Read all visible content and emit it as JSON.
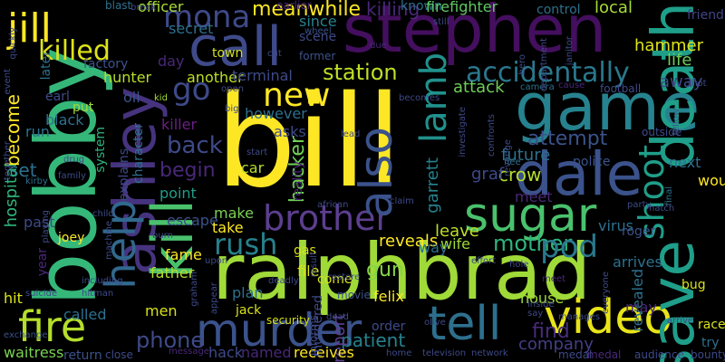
{
  "words": [
    {
      "text": "bill",
      "color": "#fde725"
    },
    {
      "text": "stephen",
      "color": "#440f5e"
    },
    {
      "text": "ralphbrad",
      "color": "#a0da39"
    },
    {
      "text": "bobby",
      "color": "#35b779"
    },
    {
      "text": "game",
      "color": "#26828e"
    },
    {
      "text": "dale",
      "color": "#3b528b"
    },
    {
      "text": "call",
      "color": "#3e4a89"
    },
    {
      "text": "ashley",
      "color": "#46337e"
    },
    {
      "text": "sugar",
      "color": "#4ac16d"
    },
    {
      "text": "murder",
      "color": "#3b528b"
    },
    {
      "text": "video",
      "color": "#e8e419"
    },
    {
      "text": "fire",
      "color": "#b5de2b"
    },
    {
      "text": "kill",
      "color": "#4ac16d"
    },
    {
      "text": "tell",
      "color": "#2d708e"
    },
    {
      "text": "brother",
      "color": "#5c3f8f"
    },
    {
      "text": "shoot",
      "color": "#1f9e89"
    },
    {
      "text": "death",
      "color": "#1f9e89"
    },
    {
      "text": "also",
      "color": "#3b528b"
    },
    {
      "text": "lamb",
      "color": "#21918c"
    },
    {
      "text": "new",
      "color": "#fde725"
    },
    {
      "text": "go",
      "color": "#3e4a89"
    },
    {
      "text": "mona",
      "color": "#3e4a89"
    },
    {
      "text": "rush",
      "color": "#26828e"
    },
    {
      "text": "help",
      "color": "#31688e"
    },
    {
      "text": "jill",
      "color": "#fde725"
    },
    {
      "text": "killed",
      "color": "#dde318"
    },
    {
      "text": "accidentally",
      "color": "#2a788e"
    },
    {
      "text": "station",
      "color": "#bddf26"
    },
    {
      "text": "attack",
      "color": "#6ece58"
    },
    {
      "text": "back",
      "color": "#3e4a89"
    },
    {
      "text": "attempt",
      "color": "#3b528b"
    },
    {
      "text": "future",
      "color": "#2d708e"
    },
    {
      "text": "crow",
      "color": "#b5de2b"
    },
    {
      "text": "begin",
      "color": "#482878"
    },
    {
      "text": "gun",
      "color": "#86d549"
    },
    {
      "text": "mother",
      "color": "#2fb47c"
    },
    {
      "text": "leave",
      "color": "#bddf26"
    },
    {
      "text": "pod",
      "color": "#2a788e"
    },
    {
      "text": "save",
      "color": "#1f9e89"
    },
    {
      "text": "find",
      "color": "#472d7b"
    },
    {
      "text": "phone",
      "color": "#3e4a89"
    },
    {
      "text": "patient",
      "color": "#26828e"
    },
    {
      "text": "company",
      "color": "#433e85"
    },
    {
      "text": "hacker",
      "color": "#73d056"
    },
    {
      "text": "graf",
      "color": "#3e4a89"
    },
    {
      "text": "garrett",
      "color": "#26828e"
    },
    {
      "text": "reveals",
      "color": "#fde725"
    },
    {
      "text": "set",
      "color": "#2d708e"
    },
    {
      "text": "meanwhile",
      "color": "#fde725"
    },
    {
      "text": "killing",
      "color": "#482878"
    },
    {
      "text": "known",
      "color": "#2d708e"
    },
    {
      "text": "firefighter",
      "color": "#5ec962"
    },
    {
      "text": "control",
      "color": "#2d708e"
    },
    {
      "text": "local",
      "color": "#a5db36"
    },
    {
      "text": "friend",
      "color": "#414487"
    },
    {
      "text": "hammer",
      "color": "#dde318"
    },
    {
      "text": "life",
      "color": "#6ece58"
    },
    {
      "text": "away",
      "color": "#3e4a89"
    },
    {
      "text": "since",
      "color": "#26828e"
    },
    {
      "text": "scene",
      "color": "#3e4a89"
    },
    {
      "text": "town",
      "color": "#d0e11c"
    },
    {
      "text": "secret",
      "color": "#2d708e"
    },
    {
      "text": "officer",
      "color": "#a8db34"
    },
    {
      "text": "factory",
      "color": "#3b528b"
    },
    {
      "text": "hunter",
      "color": "#b5de2b"
    },
    {
      "text": "oil",
      "color": "#3b528b"
    },
    {
      "text": "day",
      "color": "#482878"
    },
    {
      "text": "another",
      "color": "#bddf26"
    },
    {
      "text": "terminal",
      "color": "#3e4a89"
    },
    {
      "text": "however",
      "color": "#2d708e"
    },
    {
      "text": "killer",
      "color": "#6b1f84"
    },
    {
      "text": "point",
      "color": "#1f9e89"
    },
    {
      "text": "escape",
      "color": "#3b528b"
    },
    {
      "text": "make",
      "color": "#7ad151"
    },
    {
      "text": "take",
      "color": "#fde725"
    },
    {
      "text": "fame",
      "color": "#fde725"
    },
    {
      "text": "father",
      "color": "#b5de2b"
    },
    {
      "text": "file",
      "color": "#d8e219"
    },
    {
      "text": "felix",
      "color": "#fde725"
    },
    {
      "text": "report",
      "color": "#5c3f8f"
    },
    {
      "text": "way",
      "color": "#2d708e"
    },
    {
      "text": "wife",
      "color": "#a0da39"
    },
    {
      "text": "police",
      "color": "#3b528b"
    },
    {
      "text": "meet",
      "color": "#482878"
    },
    {
      "text": "next",
      "color": "#2d708e"
    },
    {
      "text": "would",
      "color": "#fde725"
    },
    {
      "text": "virus",
      "color": "#2d708e"
    },
    {
      "text": "roger",
      "color": "#3b528b"
    },
    {
      "text": "arrives",
      "color": "#2d708e"
    },
    {
      "text": "revealed",
      "color": "#2d708e"
    },
    {
      "text": "bug",
      "color": "#d8e219"
    },
    {
      "text": "may",
      "color": "#482878"
    },
    {
      "text": "race",
      "color": "#d8e219"
    },
    {
      "text": "try",
      "color": "#2d708e"
    },
    {
      "text": "plan",
      "color": "#2d708e"
    },
    {
      "text": "jack",
      "color": "#d8e219"
    },
    {
      "text": "men",
      "color": "#d8e219"
    },
    {
      "text": "hack",
      "color": "#3e4a89"
    },
    {
      "text": "named",
      "color": "#482878"
    },
    {
      "text": "receives",
      "color": "#fde725"
    },
    {
      "text": "house",
      "color": "#a0da39"
    },
    {
      "text": "order",
      "color": "#3e4a89"
    },
    {
      "text": "called",
      "color": "#2d708e"
    },
    {
      "text": "return",
      "color": "#3b528b"
    },
    {
      "text": "waitress",
      "color": "#7ad151"
    },
    {
      "text": "hit",
      "color": "#dde318"
    },
    {
      "text": "hospital",
      "color": "#2fb47c"
    },
    {
      "text": "become",
      "color": "#fde725"
    },
    {
      "text": "earl",
      "color": "#3e4a89"
    },
    {
      "text": "black",
      "color": "#2d708e"
    },
    {
      "text": "run",
      "color": "#2d708e"
    },
    {
      "text": "later",
      "color": "#2d708e"
    },
    {
      "text": "put",
      "color": "#a0da39"
    },
    {
      "text": "system",
      "color": "#2fb47c"
    },
    {
      "text": "explains",
      "color": "#3e4a89"
    },
    {
      "text": "character",
      "color": "#2d708e"
    },
    {
      "text": "past",
      "color": "#3e4a89"
    },
    {
      "text": "year",
      "color": "#482878"
    },
    {
      "text": "joey",
      "color": "#fde725"
    },
    {
      "text": "kirby",
      "color": "#2d708e"
    },
    {
      "text": "car",
      "color": "#b5de2b"
    },
    {
      "text": "come",
      "color": "#d8e219"
    },
    {
      "text": "murdered",
      "color": "#3e4a89"
    },
    {
      "text": "informs",
      "color": "#3e4a89"
    },
    {
      "text": "security",
      "color": "#d8e219"
    },
    {
      "text": "movie",
      "color": "#3b528b"
    },
    {
      "text": "gas",
      "color": "#d8e219"
    },
    {
      "text": "asks",
      "color": "#3e4a89"
    },
    {
      "text": "reality",
      "color": "#482878"
    },
    {
      "text": "result",
      "color": "#3e4a89"
    },
    {
      "text": "blast",
      "color": "#2d708e"
    },
    {
      "text": "cut",
      "color": "#3e4a89"
    },
    {
      "text": "earlier",
      "color": "#482878"
    },
    {
      "text": "wheel",
      "color": "#3b528b"
    },
    {
      "text": "former",
      "color": "#3b528b"
    },
    {
      "text": "due",
      "color": "#482878"
    },
    {
      "text": "medal",
      "color": "#482878"
    },
    {
      "text": "audience",
      "color": "#3e4a89"
    },
    {
      "text": "bounty",
      "color": "#3e4a89"
    },
    {
      "text": "network",
      "color": "#3e4a89"
    },
    {
      "text": "television",
      "color": "#3e4a89"
    },
    {
      "text": "home",
      "color": "#3e4a89"
    },
    {
      "text": "close",
      "color": "#3e4a89"
    },
    {
      "text": "message",
      "color": "#482878"
    },
    {
      "text": "exchange",
      "color": "#3b528b"
    },
    {
      "text": "kid",
      "color": "#a0da39"
    },
    {
      "text": "camera",
      "color": "#2d708e"
    },
    {
      "text": "cause",
      "color": "#482878"
    },
    {
      "text": "football",
      "color": "#3e4a89"
    },
    {
      "text": "shot",
      "color": "#3e4a89"
    },
    {
      "text": "outside",
      "color": "#3e4a89"
    },
    {
      "text": "fellow",
      "color": "#3b528b"
    },
    {
      "text": "final",
      "color": "#2d708e"
    },
    {
      "text": "party",
      "color": "#3e4a89"
    },
    {
      "text": "hatch",
      "color": "#3e4a89"
    },
    {
      "text": "arrive",
      "color": "#3e4a89"
    },
    {
      "text": "manages",
      "color": "#3e4a89"
    },
    {
      "text": "everyone",
      "color": "#3e4a89"
    },
    {
      "text": "medal",
      "color": "#3e4a89"
    },
    {
      "text": "hole",
      "color": "#3e4a89"
    },
    {
      "text": "meet",
      "color": "#482878"
    },
    {
      "text": "inside",
      "color": "#3e4a89"
    },
    {
      "text": "say",
      "color": "#3e4a89"
    },
    {
      "text": "olive",
      "color": "#3e4a89"
    },
    {
      "text": "effort",
      "color": "#3e4a89"
    },
    {
      "text": "deadly",
      "color": "#3e4a89"
    },
    {
      "text": "restore",
      "color": "#3e4a89"
    },
    {
      "text": "revenge",
      "color": "#3e4a89"
    },
    {
      "text": "flee",
      "color": "#2d708e"
    },
    {
      "text": "claim",
      "color": "#3e4a89"
    },
    {
      "text": "african",
      "color": "#3e4a89"
    },
    {
      "text": "becomes",
      "color": "#3e4a89"
    },
    {
      "text": "dead",
      "color": "#3e4a89"
    },
    {
      "text": "lead",
      "color": "#3e4a89"
    },
    {
      "text": "family",
      "color": "#3e4a89"
    },
    {
      "text": "drug",
      "color": "#3e4a89"
    },
    {
      "text": "child",
      "color": "#3e4a89"
    },
    {
      "text": "playing",
      "color": "#3e4a89"
    },
    {
      "text": "including",
      "color": "#3e4a89"
    },
    {
      "text": "hitman",
      "color": "#3e4a89"
    },
    {
      "text": "burn",
      "color": "#3e4a89"
    },
    {
      "text": "suicide",
      "color": "#3e4a89"
    },
    {
      "text": "department",
      "color": "#3e4a89"
    },
    {
      "text": "janitor",
      "color": "#3e4a89"
    },
    {
      "text": "hero",
      "color": "#3e4a89"
    },
    {
      "text": "quickly",
      "color": "#3e4a89"
    },
    {
      "text": "event",
      "color": "#3e4a89"
    },
    {
      "text": "big",
      "color": "#3e4a89"
    },
    {
      "text": "open",
      "color": "#3e4a89"
    },
    {
      "text": "break",
      "color": "#3e4a89"
    },
    {
      "text": "start",
      "color": "#3e4a89"
    },
    {
      "text": "still",
      "color": "#3e4a89"
    },
    {
      "text": "investigate",
      "color": "#3e4a89"
    },
    {
      "text": "confronts",
      "color": "#3e4a89"
    },
    {
      "text": "together",
      "color": "#3e4a89"
    },
    {
      "text": "upon",
      "color": "#3e4a89"
    },
    {
      "text": "appear",
      "color": "#3e4a89"
    },
    {
      "text": "graham",
      "color": "#3e4a89"
    },
    {
      "text": "machine",
      "color": "#3e4a89"
    },
    {
      "text": "jet",
      "color": "#3e4a89"
    }
  ]
}
